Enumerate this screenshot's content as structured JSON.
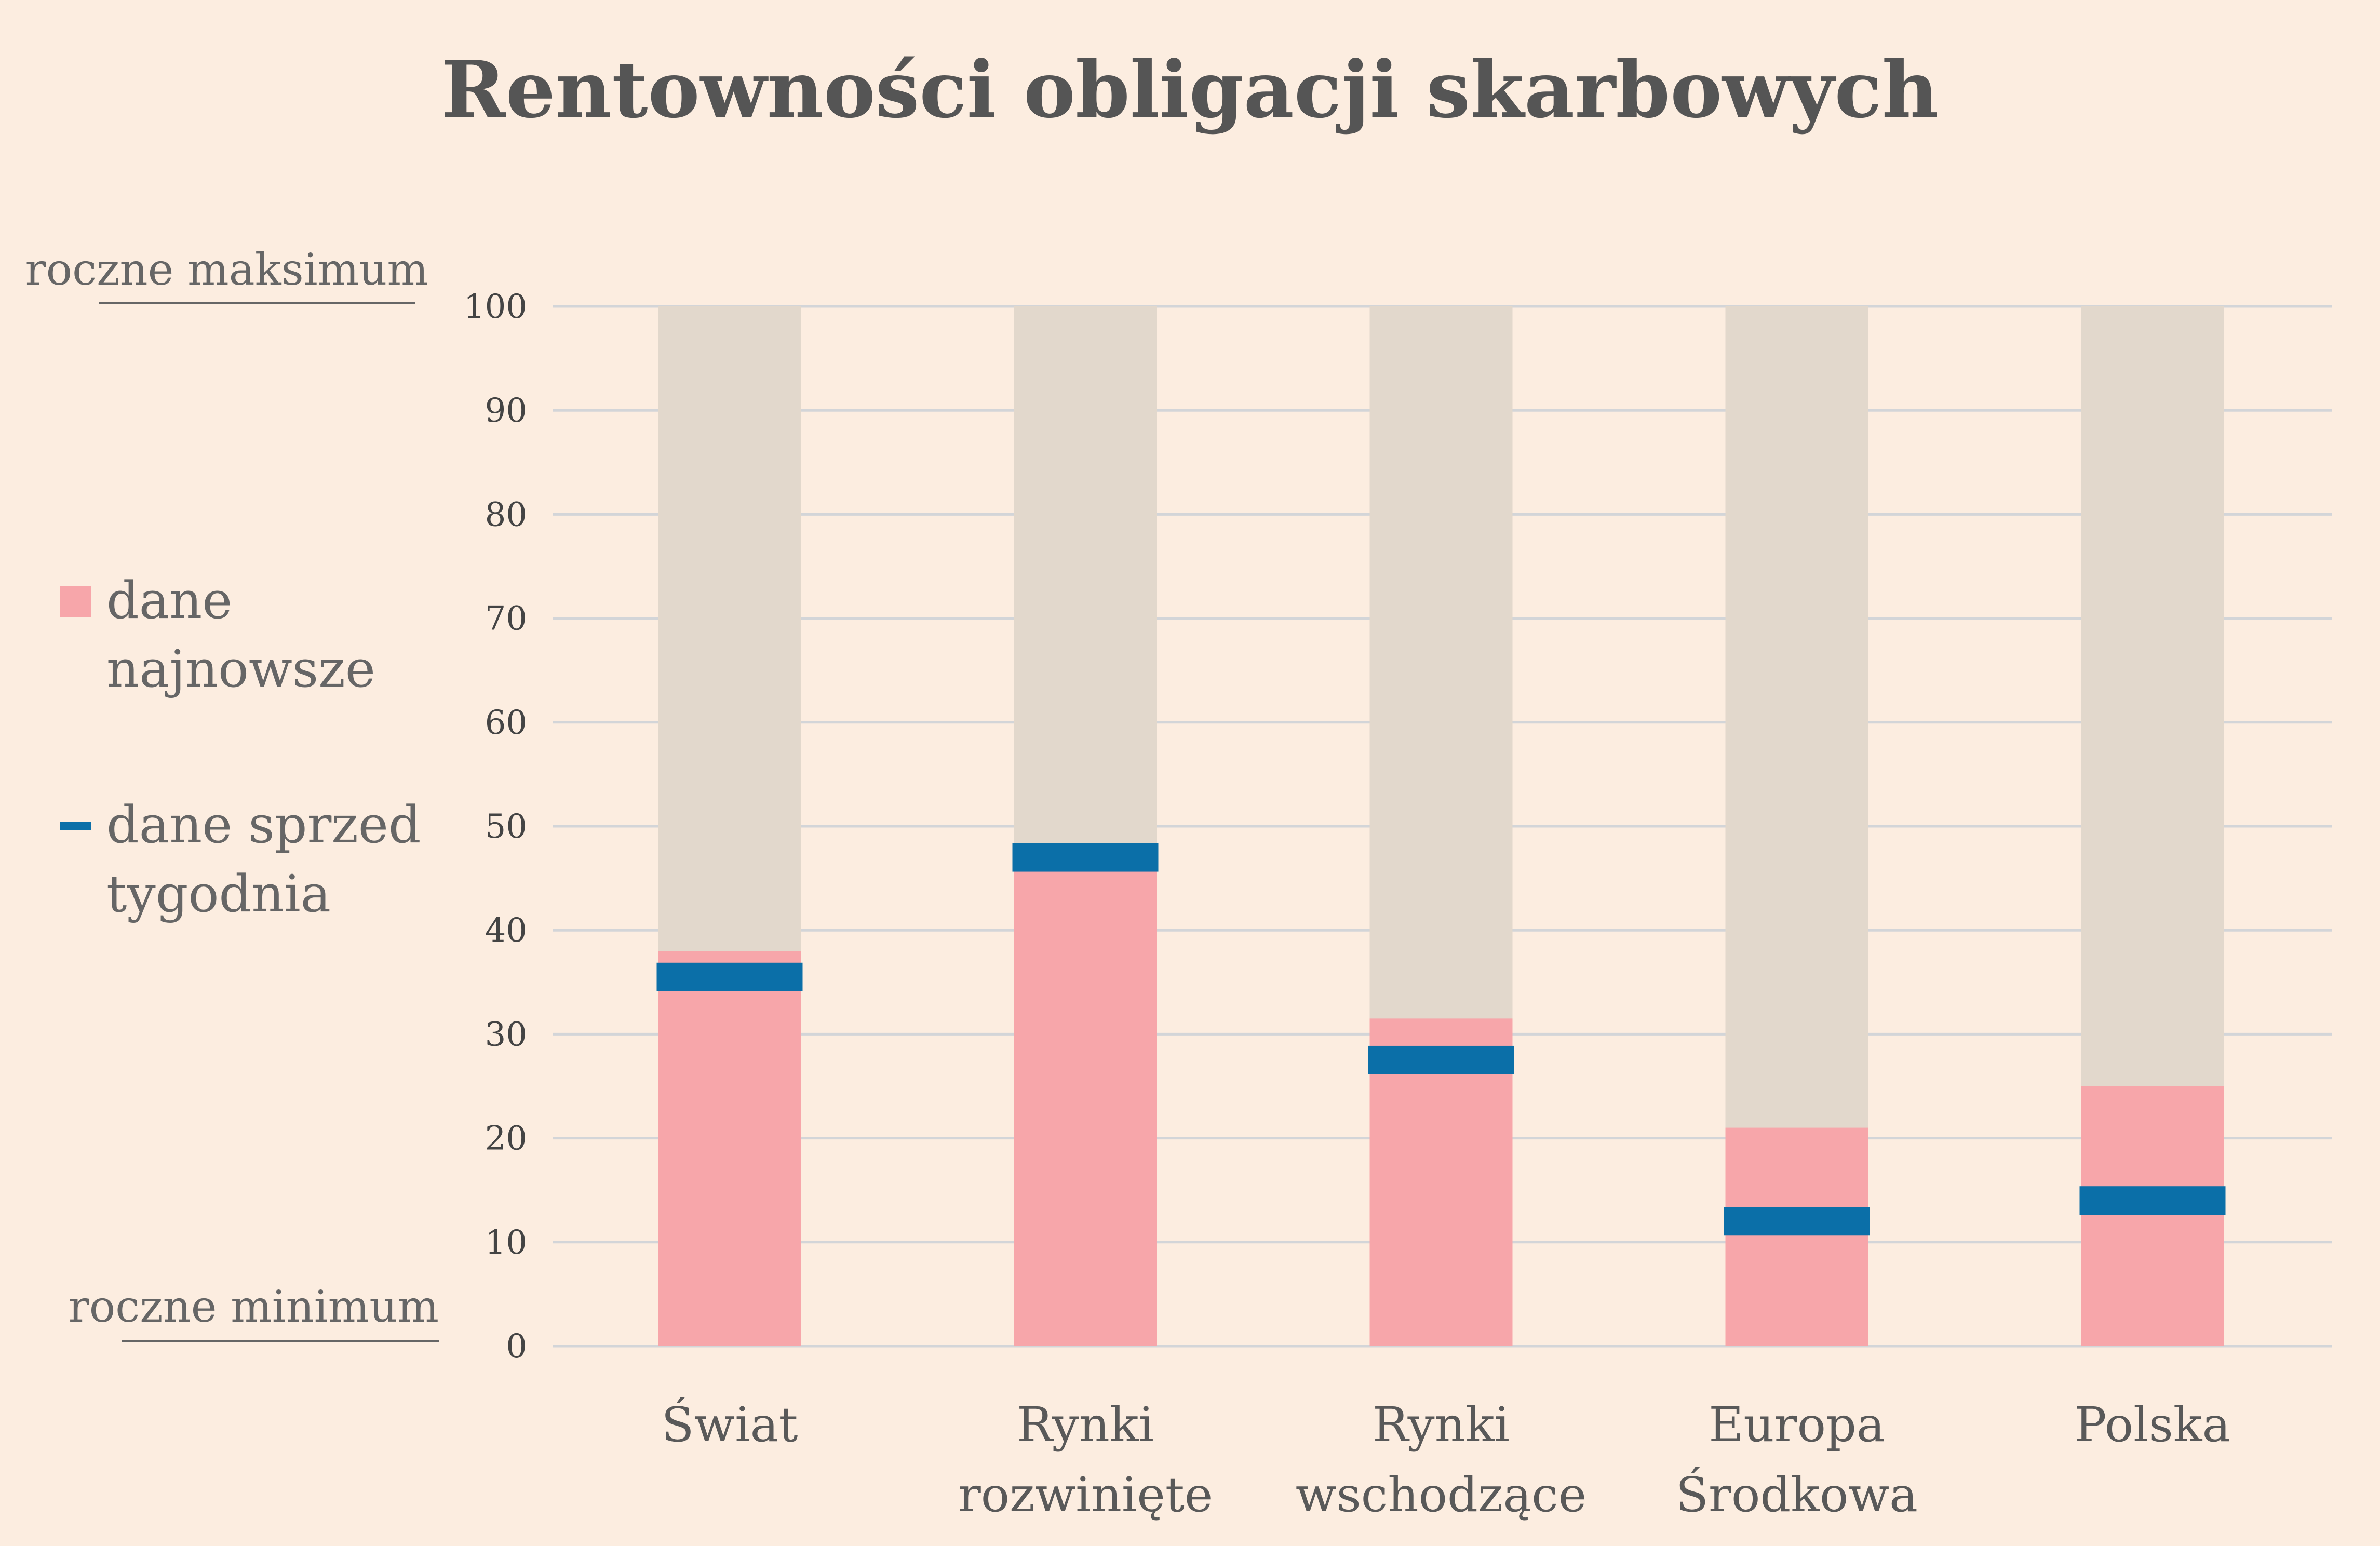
{
  "chart_data": {
    "type": "bar",
    "title": "Rentowności obligacji skarbowych",
    "categories": [
      [
        "Świat"
      ],
      [
        "Rynki",
        "rozwinięte"
      ],
      [
        "Rynki",
        "wschodzące"
      ],
      [
        "Europa",
        "Środkowa"
      ],
      [
        "Polska"
      ]
    ],
    "series": [
      {
        "name": "dane najnowsze",
        "values": [
          38,
          47,
          31.5,
          21,
          25
        ],
        "color": "#f7a6aa"
      },
      {
        "name": "dane sprzed tygodnia",
        "values": [
          35.5,
          47,
          27.5,
          12,
          14
        ],
        "color": "#0b6fa8"
      }
    ],
    "range_band": {
      "values": [
        100,
        100,
        100,
        100,
        100
      ],
      "color": "#e2d8cc"
    },
    "yticks": [
      0,
      10,
      20,
      30,
      40,
      50,
      60,
      70,
      80,
      90,
      100
    ],
    "ylim": [
      0,
      100
    ],
    "grid": true,
    "legend_position": "left",
    "axis_notes": {
      "top": "roczne maksimum",
      "bottom": "roczne minimum"
    },
    "legend": [
      {
        "lines": [
          "dane",
          "najnowsze"
        ],
        "marker": "square",
        "color": "#f7a6aa"
      },
      {
        "lines": [
          "dane sprzed",
          "tygodnia"
        ],
        "marker": "dash",
        "color": "#0b6fa8"
      }
    ]
  },
  "colors": {
    "background": "#fcede0",
    "grid": "#d3d5d8"
  }
}
